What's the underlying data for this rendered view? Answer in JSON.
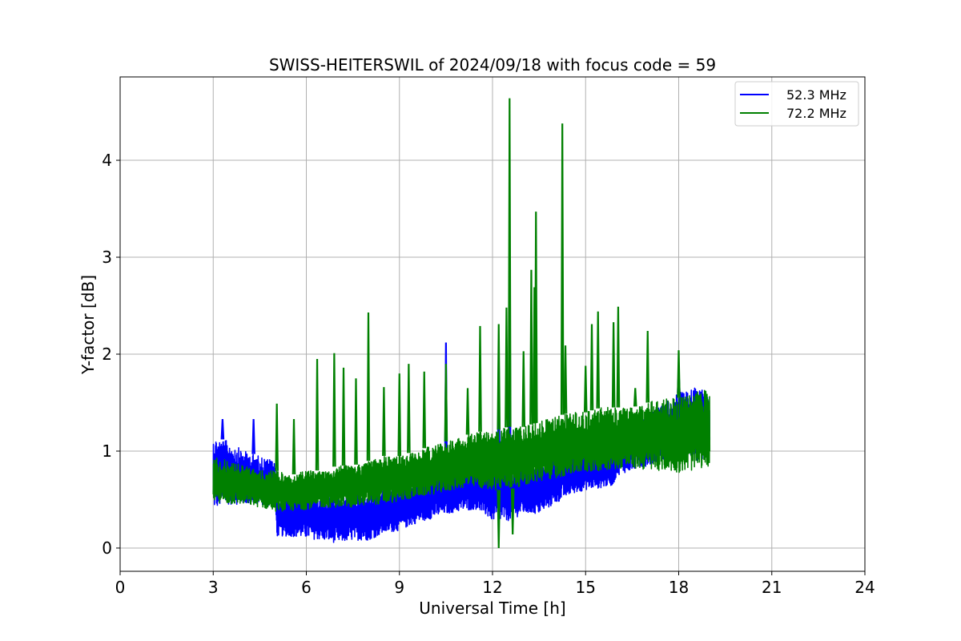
{
  "chart_data": {
    "type": "line",
    "title": "SWISS-HEITERSWIL of 2024/09/18 with focus code = 59",
    "xlabel": "Universal Time [h]",
    "ylabel": "Y-factor [dB]",
    "xlim": [
      0,
      24
    ],
    "ylim": [
      -0.24,
      4.86
    ],
    "xticks": [
      0,
      3,
      6,
      9,
      12,
      15,
      18,
      21,
      24
    ],
    "yticks": [
      0,
      1,
      2,
      3,
      4
    ],
    "grid": true,
    "legend": "top-right",
    "series": [
      {
        "name": "52.3 MHz",
        "color": "#0000ff",
        "baseline": {
          "x": [
            3,
            3.5,
            4,
            4.5,
            5,
            5.05,
            5.5,
            6,
            6.5,
            7,
            7.5,
            8,
            8.5,
            9,
            9.5,
            10,
            10.5,
            11,
            11.5,
            12,
            12.5,
            13,
            13.5,
            14,
            14.5,
            15,
            15.5,
            15.9,
            16.0,
            16.5,
            17,
            17.5,
            18,
            18.5,
            19
          ],
          "low": [
            0.4,
            0.45,
            0.45,
            0.45,
            0.42,
            0.12,
            0.12,
            0.1,
            0.08,
            0.05,
            0.08,
            0.08,
            0.15,
            0.18,
            0.25,
            0.3,
            0.35,
            0.38,
            0.4,
            0.28,
            0.28,
            0.35,
            0.35,
            0.45,
            0.55,
            0.6,
            0.62,
            0.65,
            0.75,
            0.8,
            0.85,
            0.9,
            0.9,
            0.9,
            0.9
          ],
          "high": [
            1.15,
            1.1,
            1.0,
            0.95,
            0.9,
            0.55,
            0.55,
            0.6,
            0.55,
            0.55,
            0.55,
            0.55,
            0.6,
            0.65,
            0.7,
            0.75,
            0.8,
            0.85,
            0.8,
            0.85,
            0.8,
            0.85,
            0.85,
            0.95,
            1.0,
            1.05,
            1.05,
            1.05,
            1.25,
            1.25,
            1.35,
            1.5,
            1.6,
            1.65,
            1.65
          ]
        },
        "spikes": [
          {
            "x": 3.3,
            "y": 1.33
          },
          {
            "x": 4.3,
            "y": 1.33
          },
          {
            "x": 10.5,
            "y": 2.12
          },
          {
            "x": 12.55,
            "y": 3.08
          },
          {
            "x": 12.2,
            "y": 2.05
          },
          {
            "x": 18.0,
            "y": 1.83
          }
        ]
      },
      {
        "name": "72.2 MHz",
        "color": "#008000",
        "baseline": {
          "x": [
            3,
            3.5,
            4,
            4.5,
            5,
            5.5,
            6,
            6.5,
            7,
            7.5,
            8,
            8.5,
            9,
            9.5,
            10,
            10.5,
            11,
            11.5,
            12,
            12.5,
            13,
            13.5,
            14,
            14.5,
            15,
            15.5,
            16,
            16.5,
            17,
            17.5,
            18,
            18.5,
            19
          ],
          "low": [
            0.48,
            0.45,
            0.45,
            0.42,
            0.38,
            0.38,
            0.4,
            0.42,
            0.42,
            0.42,
            0.45,
            0.45,
            0.48,
            0.52,
            0.55,
            0.58,
            0.62,
            0.62,
            0.6,
            0.6,
            0.65,
            0.68,
            0.72,
            0.75,
            0.78,
            0.8,
            0.82,
            0.82,
            0.8,
            0.8,
            0.78,
            0.8,
            0.85
          ],
          "high": [
            0.95,
            0.9,
            0.85,
            0.8,
            0.8,
            0.75,
            0.8,
            0.8,
            0.85,
            0.85,
            0.9,
            0.95,
            0.95,
            1.0,
            1.05,
            1.1,
            1.15,
            1.2,
            1.2,
            1.25,
            1.25,
            1.3,
            1.35,
            1.4,
            1.4,
            1.45,
            1.45,
            1.45,
            1.5,
            1.55,
            1.55,
            1.6,
            1.65
          ]
        },
        "spikes": [
          {
            "x": 5.05,
            "y": 1.49
          },
          {
            "x": 5.6,
            "y": 1.33
          },
          {
            "x": 6.35,
            "y": 1.95
          },
          {
            "x": 6.9,
            "y": 2.01
          },
          {
            "x": 7.2,
            "y": 1.86
          },
          {
            "x": 7.6,
            "y": 1.75
          },
          {
            "x": 8.0,
            "y": 2.43
          },
          {
            "x": 8.5,
            "y": 1.66
          },
          {
            "x": 9.0,
            "y": 1.8
          },
          {
            "x": 9.3,
            "y": 1.9
          },
          {
            "x": 9.8,
            "y": 1.82
          },
          {
            "x": 10.5,
            "y": 1.9
          },
          {
            "x": 11.2,
            "y": 1.65
          },
          {
            "x": 11.6,
            "y": 2.29
          },
          {
            "x": 12.2,
            "y": 2.31
          },
          {
            "x": 12.45,
            "y": 2.48
          },
          {
            "x": 12.55,
            "y": 4.64
          },
          {
            "x": 13.0,
            "y": 2.03
          },
          {
            "x": 13.25,
            "y": 2.87
          },
          {
            "x": 13.4,
            "y": 3.47
          },
          {
            "x": 13.35,
            "y": 2.69
          },
          {
            "x": 14.25,
            "y": 4.38
          },
          {
            "x": 14.35,
            "y": 2.09
          },
          {
            "x": 15.0,
            "y": 1.88
          },
          {
            "x": 15.2,
            "y": 2.31
          },
          {
            "x": 15.4,
            "y": 2.44
          },
          {
            "x": 15.9,
            "y": 2.33
          },
          {
            "x": 16.05,
            "y": 2.49
          },
          {
            "x": 16.6,
            "y": 1.65
          },
          {
            "x": 17.0,
            "y": 2.24
          },
          {
            "x": 18.0,
            "y": 2.04
          }
        ],
        "dips": [
          {
            "x": 12.2,
            "y": 0.0
          },
          {
            "x": 12.65,
            "y": 0.14
          }
        ]
      }
    ]
  }
}
